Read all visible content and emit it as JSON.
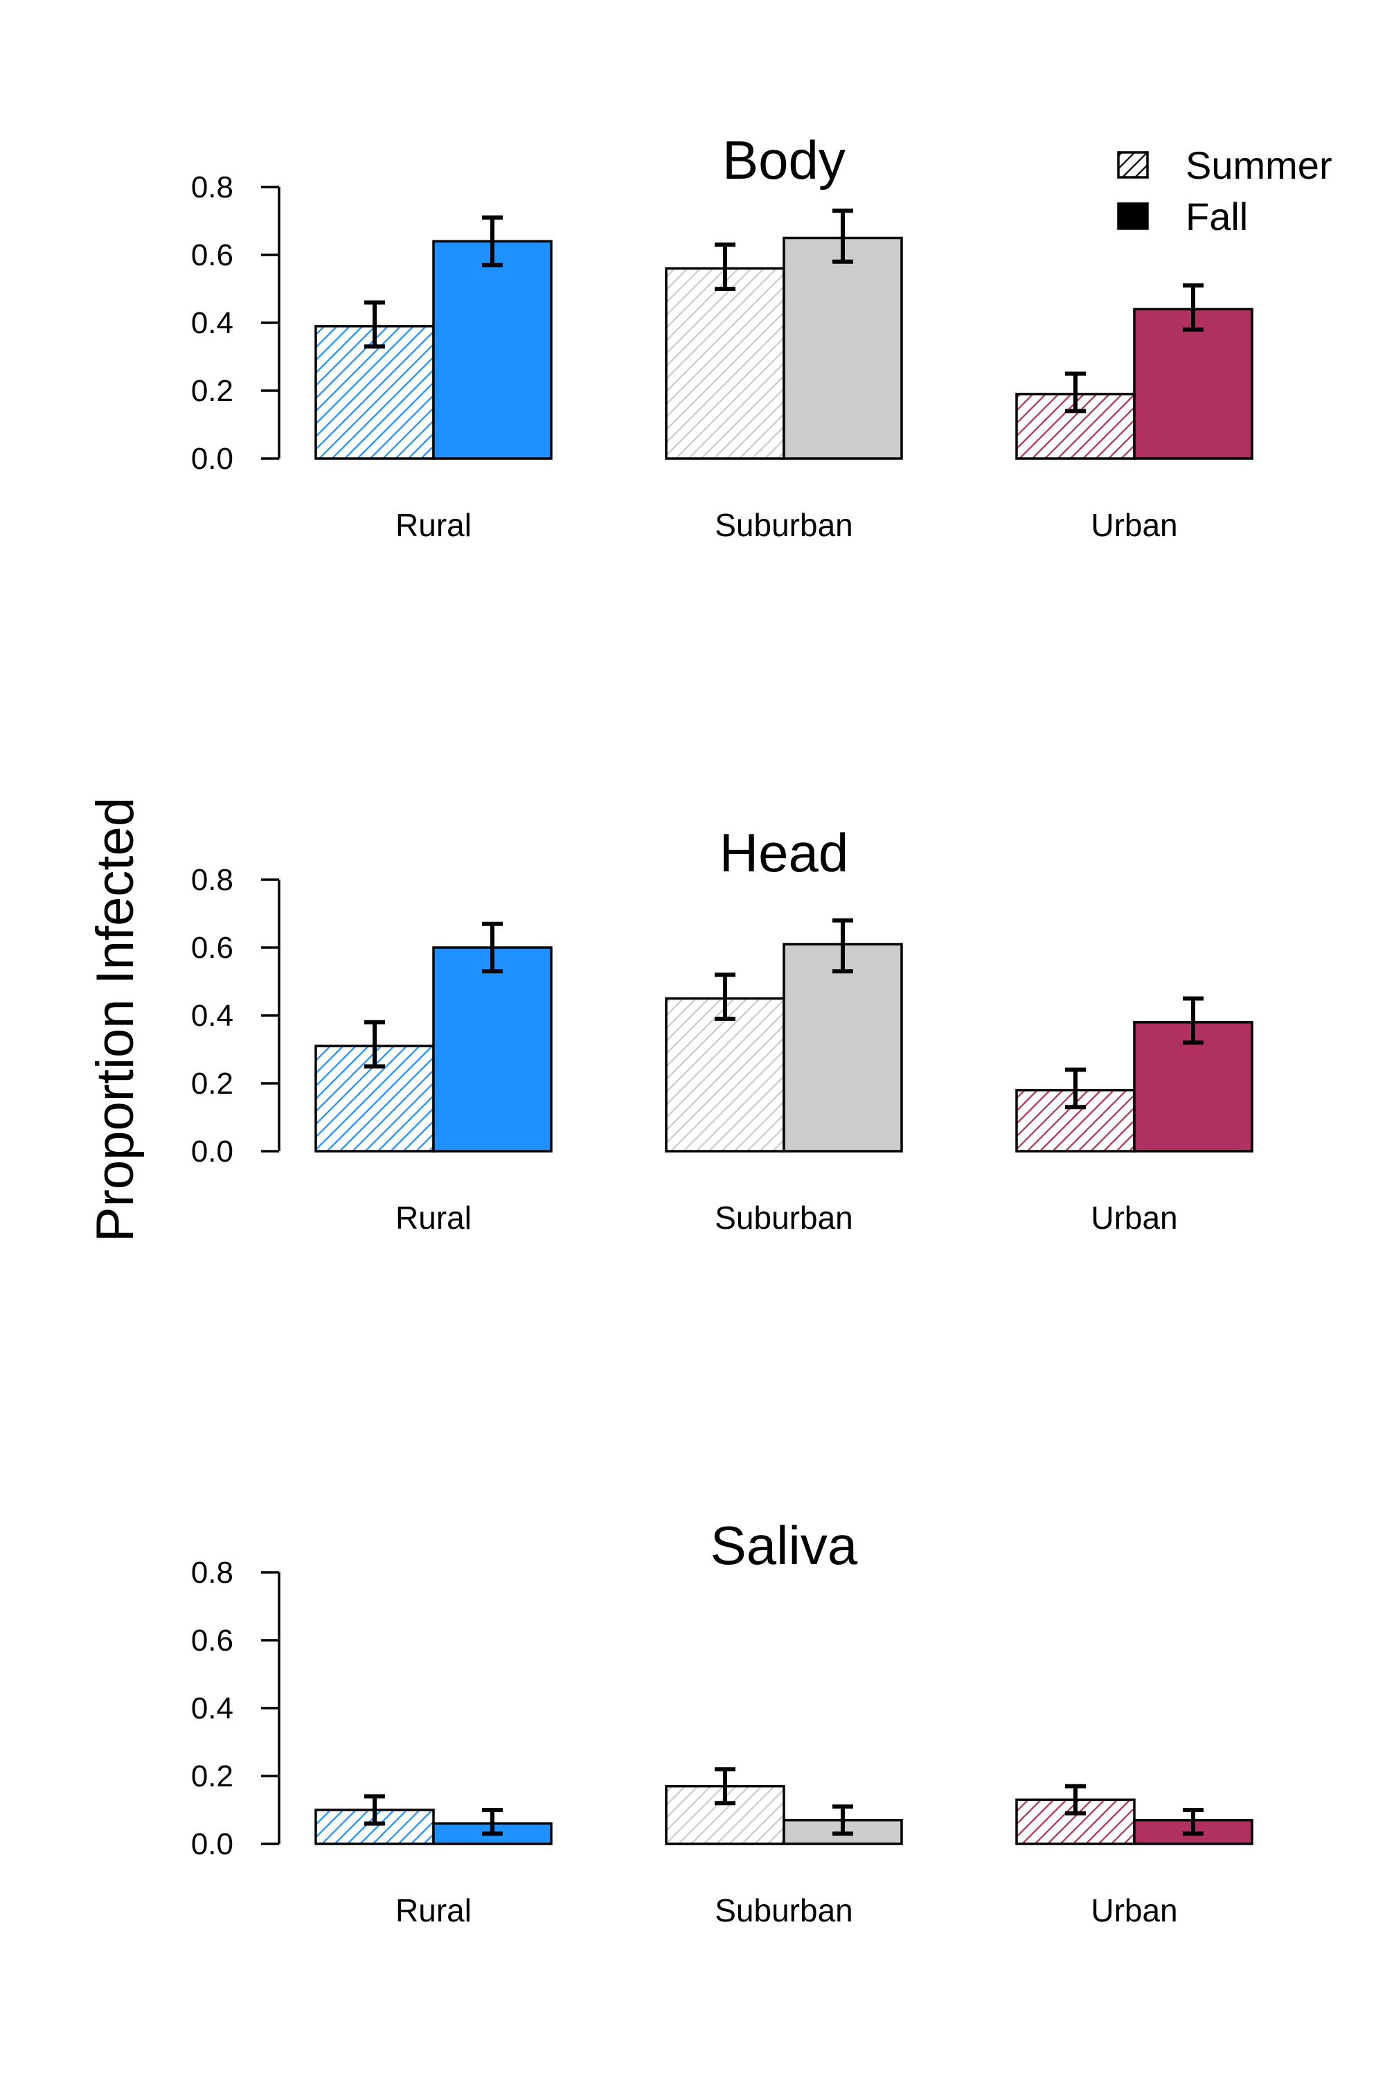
{
  "ylabel": "Proportion Infected",
  "legend": {
    "placement": "top-right",
    "entries": [
      {
        "label": "Summer",
        "style": "hatched"
      },
      {
        "label": "Fall",
        "style": "solid"
      }
    ]
  },
  "colors": {
    "Rural": "#1E90FF",
    "Suburban": "#CCCCCC",
    "Urban": "#B03060",
    "Legend": "#000000"
  },
  "chart_data": [
    {
      "type": "bar",
      "title": "Body",
      "categories": [
        "Rural",
        "Suburban",
        "Urban"
      ],
      "series": [
        {
          "name": "Summer",
          "values": [
            0.39,
            0.56,
            0.19
          ],
          "err_low": [
            0.33,
            0.5,
            0.14
          ],
          "err_high": [
            0.46,
            0.63,
            0.25
          ]
        },
        {
          "name": "Fall",
          "values": [
            0.64,
            0.65,
            0.44
          ],
          "err_low": [
            0.57,
            0.58,
            0.38
          ],
          "err_high": [
            0.71,
            0.73,
            0.51
          ]
        }
      ],
      "ylim": [
        0,
        0.8
      ],
      "yticks": [
        "0.0",
        "0.2",
        "0.4",
        "0.6",
        "0.8"
      ],
      "grid": false
    },
    {
      "type": "bar",
      "title": "Head",
      "categories": [
        "Rural",
        "Suburban",
        "Urban"
      ],
      "series": [
        {
          "name": "Summer",
          "values": [
            0.31,
            0.45,
            0.18
          ],
          "err_low": [
            0.25,
            0.39,
            0.13
          ],
          "err_high": [
            0.38,
            0.52,
            0.24
          ]
        },
        {
          "name": "Fall",
          "values": [
            0.6,
            0.61,
            0.38
          ],
          "err_low": [
            0.53,
            0.53,
            0.32
          ],
          "err_high": [
            0.67,
            0.68,
            0.45
          ]
        }
      ],
      "ylim": [
        0,
        0.8
      ],
      "yticks": [
        "0.0",
        "0.2",
        "0.4",
        "0.6",
        "0.8"
      ],
      "grid": false
    },
    {
      "type": "bar",
      "title": "Saliva",
      "categories": [
        "Rural",
        "Suburban",
        "Urban"
      ],
      "series": [
        {
          "name": "Summer",
          "values": [
            0.1,
            0.17,
            0.13
          ],
          "err_low": [
            0.06,
            0.12,
            0.09
          ],
          "err_high": [
            0.14,
            0.22,
            0.17
          ]
        },
        {
          "name": "Fall",
          "values": [
            0.06,
            0.07,
            0.07
          ],
          "err_low": [
            0.03,
            0.03,
            0.03
          ],
          "err_high": [
            0.1,
            0.11,
            0.1
          ]
        }
      ],
      "ylim": [
        0,
        0.8
      ],
      "yticks": [
        "0.0",
        "0.2",
        "0.4",
        "0.6",
        "0.8"
      ],
      "grid": false
    }
  ]
}
